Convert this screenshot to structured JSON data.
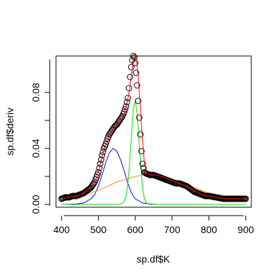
{
  "chart_data": {
    "type": "scatter",
    "title": "",
    "xlabel": "sp.df$K",
    "ylabel": "sp.df$deriv",
    "xlim": [
      385,
      915
    ],
    "ylim": [
      -0.002,
      0.106
    ],
    "x_ticks": [
      {
        "value": 400,
        "label": "400"
      },
      {
        "value": 500,
        "label": "500"
      },
      {
        "value": 600,
        "label": "600"
      },
      {
        "value": 700,
        "label": "700"
      },
      {
        "value": 800,
        "label": "800"
      },
      {
        "value": 900,
        "label": "900"
      }
    ],
    "y_ticks": [
      {
        "value": 0.0,
        "label": "0.00"
      },
      {
        "value": 0.02,
        "label": ""
      },
      {
        "value": 0.04,
        "label": "0.04"
      },
      {
        "value": 0.06,
        "label": ""
      },
      {
        "value": 0.08,
        "label": "0.08"
      }
    ],
    "grid": false,
    "observed": {
      "x": [
        400,
        410,
        420,
        430,
        440,
        450,
        460,
        470,
        480,
        490,
        500,
        505,
        510,
        515,
        520,
        525,
        530,
        535,
        540,
        545,
        550,
        555,
        560,
        565,
        570,
        575,
        580,
        583,
        586,
        589,
        592,
        595,
        598,
        600,
        602,
        605,
        608,
        611,
        614,
        617,
        620,
        625,
        630,
        640,
        650,
        660,
        670,
        680,
        690,
        700,
        710,
        720,
        730,
        740,
        750,
        760,
        770,
        780,
        790,
        800,
        820,
        840,
        860,
        880,
        900
      ],
      "y": [
        0.004,
        0.005,
        0.005,
        0.006,
        0.006,
        0.007,
        0.008,
        0.01,
        0.012,
        0.016,
        0.023,
        0.029,
        0.035,
        0.04,
        0.043,
        0.047,
        0.05,
        0.052,
        0.054,
        0.056,
        0.057,
        0.059,
        0.061,
        0.063,
        0.066,
        0.07,
        0.076,
        0.083,
        0.091,
        0.098,
        0.103,
        0.106,
        0.105,
        0.101,
        0.094,
        0.085,
        0.074,
        0.062,
        0.05,
        0.038,
        0.029,
        0.023,
        0.022,
        0.021,
        0.021,
        0.02,
        0.019,
        0.018,
        0.017,
        0.016,
        0.015,
        0.015,
        0.014,
        0.013,
        0.011,
        0.009,
        0.008,
        0.007,
        0.006,
        0.006,
        0.005,
        0.004,
        0.004,
        0.004,
        0.004
      ]
    },
    "fit_total": {
      "color": "#ff0000",
      "x": [
        400,
        420,
        440,
        460,
        480,
        490,
        500,
        510,
        520,
        530,
        540,
        550,
        560,
        570,
        580,
        585,
        590,
        595,
        600,
        605,
        610,
        615,
        620,
        625,
        630,
        640,
        660,
        680,
        700,
        720,
        740,
        760,
        780,
        800,
        820,
        840,
        860,
        880,
        900
      ],
      "y": [
        0.004,
        0.005,
        0.006,
        0.008,
        0.012,
        0.016,
        0.023,
        0.034,
        0.043,
        0.05,
        0.054,
        0.057,
        0.06,
        0.065,
        0.075,
        0.083,
        0.093,
        0.102,
        0.106,
        0.1,
        0.085,
        0.065,
        0.045,
        0.03,
        0.023,
        0.021,
        0.021,
        0.019,
        0.017,
        0.015,
        0.013,
        0.01,
        0.007,
        0.006,
        0.005,
        0.004,
        0.004,
        0.004,
        0.004
      ]
    },
    "components": [
      {
        "color": "#0000ff",
        "x": [
          400,
          440,
          460,
          480,
          490,
          500,
          510,
          520,
          530,
          540,
          550,
          560,
          570,
          580,
          590,
          600,
          620,
          640,
          660,
          700,
          900
        ],
        "y": [
          0.0,
          0.0003,
          0.001,
          0.004,
          0.007,
          0.013,
          0.021,
          0.03,
          0.037,
          0.04,
          0.038,
          0.032,
          0.024,
          0.015,
          0.008,
          0.004,
          0.001,
          0.0003,
          0.0,
          0.0,
          0.0
        ]
      },
      {
        "color": "#00dd00",
        "x": [
          400,
          560,
          570,
          575,
          580,
          585,
          590,
          595,
          600,
          605,
          610,
          615,
          620,
          625,
          630,
          640,
          900
        ],
        "y": [
          0.0,
          0.0,
          0.002,
          0.006,
          0.015,
          0.03,
          0.05,
          0.068,
          0.074,
          0.066,
          0.047,
          0.027,
          0.012,
          0.004,
          0.001,
          0.0,
          0.0
        ]
      },
      {
        "color": "#ff8c00",
        "x": [
          400,
          450,
          500,
          550,
          600,
          620,
          650,
          700,
          750,
          800,
          850,
          900
        ],
        "y": [
          0.003,
          0.006,
          0.01,
          0.016,
          0.02,
          0.021,
          0.021,
          0.018,
          0.013,
          0.008,
          0.005,
          0.003
        ]
      }
    ]
  }
}
